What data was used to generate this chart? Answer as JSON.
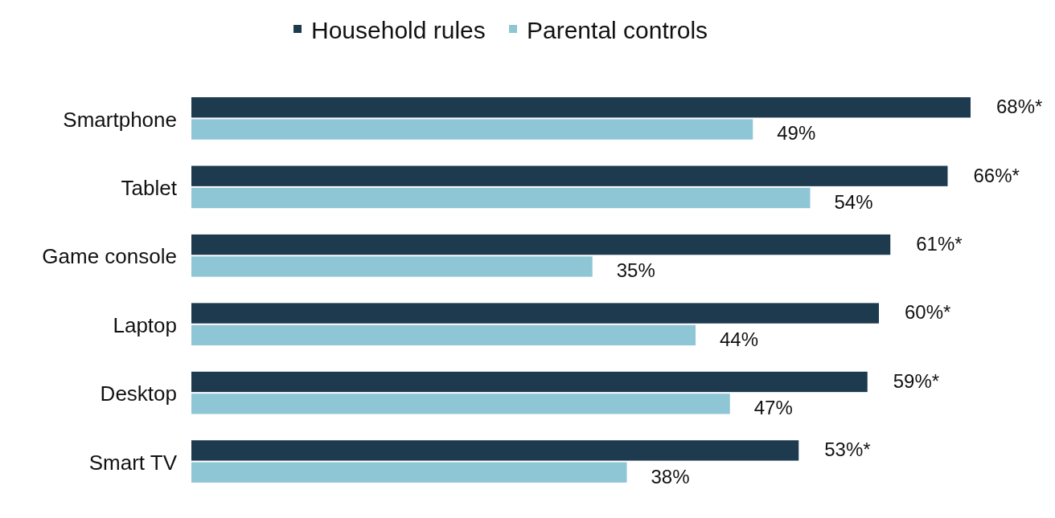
{
  "chart_data": {
    "type": "bar",
    "orientation": "horizontal",
    "categories": [
      "Smartphone",
      "Tablet",
      "Game console",
      "Laptop",
      "Desktop",
      "Smart TV"
    ],
    "series": [
      {
        "name": "Household rules",
        "color": "#1e3a4f",
        "values": [
          68,
          66,
          61,
          60,
          59,
          53
        ],
        "value_labels": [
          "68%*",
          "66%*",
          "61%*",
          "60%*",
          "59%*",
          "53%*"
        ]
      },
      {
        "name": "Parental controls",
        "color": "#8ec6d6",
        "values": [
          49,
          54,
          35,
          44,
          47,
          38
        ],
        "value_labels": [
          "49%",
          "54%",
          "35%",
          "44%",
          "47%",
          "38%"
        ]
      }
    ],
    "legend": "top"
  }
}
